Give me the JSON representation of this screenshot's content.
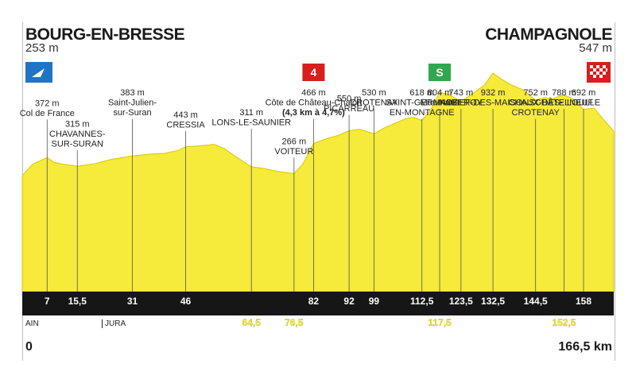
{
  "start": {
    "name": "BOURG-EN-BRESSE",
    "altitude": "253 m"
  },
  "finish": {
    "name": "CHAMPAGNOLE",
    "altitude": "547 m"
  },
  "distance_start": "0",
  "distance_total": "166,5 km",
  "regions": [
    "AIN",
    "JURA"
  ],
  "colors": {
    "profile_fill": "#f6ea3a",
    "profile_stroke": "#d8c800",
    "axis_bar": "#161616",
    "km_text_white": "#ffffff",
    "km_text_yellow": "#f6ea3a",
    "climb_badge": "#d81e1e",
    "sprint_badge": "#2fa84f",
    "start_flag": "#1f74c8",
    "finish_flag": "#d81e1e"
  },
  "icons": {
    "start": "start-flag-icon",
    "finish": "finish-flag-icon",
    "climb": "climb-category-icon",
    "sprint": "intermediate-sprint-icon"
  },
  "chart_data": {
    "type": "area",
    "title": "",
    "xlabel": "",
    "ylabel": "",
    "xlim": [
      0,
      166.5
    ],
    "ylim": [
      0,
      1000
    ],
    "profile": [
      [
        0,
        253
      ],
      [
        3,
        330
      ],
      [
        5,
        350
      ],
      [
        7,
        372
      ],
      [
        9,
        340
      ],
      [
        11,
        330
      ],
      [
        15.5,
        315
      ],
      [
        20,
        330
      ],
      [
        25,
        360
      ],
      [
        31,
        383
      ],
      [
        36,
        395
      ],
      [
        40,
        400
      ],
      [
        44,
        420
      ],
      [
        46,
        443
      ],
      [
        50,
        450
      ],
      [
        54,
        460
      ],
      [
        57,
        430
      ],
      [
        60,
        380
      ],
      [
        64.5,
        311
      ],
      [
        68,
        300
      ],
      [
        72,
        280
      ],
      [
        76.5,
        266
      ],
      [
        79,
        330
      ],
      [
        82,
        466
      ],
      [
        86,
        500
      ],
      [
        89,
        520
      ],
      [
        92,
        550
      ],
      [
        95,
        560
      ],
      [
        99,
        530
      ],
      [
        102,
        570
      ],
      [
        105,
        600
      ],
      [
        108,
        630
      ],
      [
        110,
        640
      ],
      [
        112.5,
        618
      ],
      [
        115,
        690
      ],
      [
        117.5,
        804
      ],
      [
        120,
        790
      ],
      [
        123.5,
        743
      ],
      [
        127,
        800
      ],
      [
        130,
        850
      ],
      [
        132.5,
        932
      ],
      [
        135,
        890
      ],
      [
        138,
        850
      ],
      [
        141,
        820
      ],
      [
        144.5,
        752
      ],
      [
        147,
        770
      ],
      [
        149,
        760
      ],
      [
        152.5,
        788
      ],
      [
        155,
        760
      ],
      [
        158,
        692
      ],
      [
        161,
        700
      ],
      [
        163,
        640
      ],
      [
        166.5,
        547
      ]
    ],
    "points": [
      {
        "km": 7,
        "km_label": "7",
        "label_row": "white",
        "alt": "372 m",
        "name": "Col de France"
      },
      {
        "km": 15.5,
        "km_label": "15,5",
        "label_row": "white",
        "alt": "315 m",
        "name": "CHAVANNES-\nSUR-SURAN"
      },
      {
        "km": 31,
        "km_label": "31",
        "label_row": "white",
        "alt": "383 m",
        "name": "Saint-Julien-\nsur-Suran"
      },
      {
        "km": 46,
        "km_label": "46",
        "label_row": "white",
        "alt": "443 m",
        "name": "CRESSIA"
      },
      {
        "km": 64.5,
        "km_label": "64,5",
        "label_row": "yellow",
        "alt": "311 m",
        "name": "LONS-LE-SAUNIER"
      },
      {
        "km": 76.5,
        "km_label": "76,5",
        "label_row": "yellow",
        "alt": "266 m",
        "name": "VOITEUR"
      },
      {
        "km": 82,
        "km_label": "82",
        "label_row": "white",
        "alt": "466 m",
        "name": "Côte de Château-Chalon",
        "note": "(4,3 km à 4,7%)",
        "badge": "4",
        "badge_type": "climb"
      },
      {
        "km": 92,
        "km_label": "92",
        "label_row": "white",
        "alt": "550 m",
        "name": "PICARREAU"
      },
      {
        "km": 99,
        "km_label": "99",
        "label_row": "white",
        "alt": "530 m",
        "name": "CROTENAY"
      },
      {
        "km": 112.5,
        "km_label": "112,5",
        "label_row": "white",
        "alt": "618 m",
        "name": "SAINT-GERMAIN-\nEN-MONTAGNE"
      },
      {
        "km": 117.5,
        "km_label": "117,5",
        "label_row": "yellow",
        "alt": "804 m",
        "name": "Mournans",
        "badge": "S",
        "badge_type": "sprint"
      },
      {
        "km": 123.5,
        "km_label": "123,5",
        "label_row": "white",
        "alt": "743 m",
        "name": "NOZEROY"
      },
      {
        "km": 132.5,
        "km_label": "132,5",
        "label_row": "white",
        "alt": "932 m",
        "name": "BIEF-DES-MAISONS"
      },
      {
        "km": 144.5,
        "km_label": "144,5",
        "label_row": "white",
        "alt": "752 m",
        "name": "CHAUX-DES-\nCROTENAY"
      },
      {
        "km": 152.5,
        "km_label": "152,5",
        "label_row": "yellow",
        "alt": "788 m",
        "name": "CHÂTELNEUF"
      },
      {
        "km": 158,
        "km_label": "158",
        "label_row": "white",
        "alt": "692 m",
        "name": "LOULLE"
      }
    ]
  }
}
